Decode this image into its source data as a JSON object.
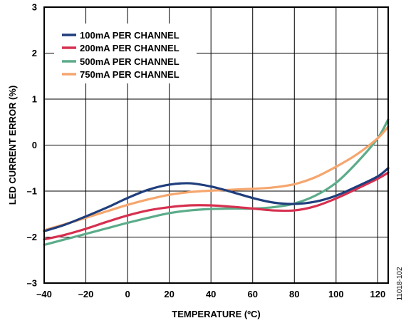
{
  "figure_id": "11018-102",
  "chart_data": {
    "type": "line",
    "xlabel": "TEMPERATURE (ºC)",
    "ylabel": "LED CURRENT ERROR (%)",
    "xlim": [
      -40,
      125
    ],
    "ylim": [
      -3,
      3
    ],
    "x_ticks": [
      -40,
      -20,
      0,
      20,
      40,
      60,
      80,
      100,
      120
    ],
    "x_tick_labels": [
      "–40",
      "–20",
      "0",
      "20",
      "40",
      "60",
      "80",
      "100",
      "120"
    ],
    "y_ticks": [
      -3,
      -2,
      -1,
      0,
      1,
      2,
      3
    ],
    "y_tick_labels": [
      "–3",
      "–2",
      "–1",
      "0",
      "1",
      "2",
      "3"
    ],
    "grid": true,
    "legend_position": "top-left",
    "series": [
      {
        "name": "100mA PER CHANNEL",
        "color": "#1f3e7c",
        "points": [
          [
            -40,
            -1.87
          ],
          [
            -30,
            -1.73
          ],
          [
            -20,
            -1.55
          ],
          [
            -10,
            -1.36
          ],
          [
            0,
            -1.15
          ],
          [
            10,
            -0.97
          ],
          [
            20,
            -0.86
          ],
          [
            30,
            -0.83
          ],
          [
            40,
            -0.9
          ],
          [
            50,
            -1.02
          ],
          [
            60,
            -1.15
          ],
          [
            70,
            -1.25
          ],
          [
            80,
            -1.28
          ],
          [
            90,
            -1.23
          ],
          [
            100,
            -1.1
          ],
          [
            110,
            -0.9
          ],
          [
            120,
            -0.68
          ],
          [
            125,
            -0.5
          ]
        ]
      },
      {
        "name": "200mA PER CHANNEL",
        "color": "#d6304f",
        "points": [
          [
            -40,
            -2.05
          ],
          [
            -30,
            -1.95
          ],
          [
            -20,
            -1.82
          ],
          [
            -10,
            -1.67
          ],
          [
            0,
            -1.53
          ],
          [
            10,
            -1.42
          ],
          [
            20,
            -1.35
          ],
          [
            30,
            -1.31
          ],
          [
            40,
            -1.31
          ],
          [
            50,
            -1.34
          ],
          [
            60,
            -1.38
          ],
          [
            70,
            -1.42
          ],
          [
            80,
            -1.42
          ],
          [
            90,
            -1.33
          ],
          [
            100,
            -1.16
          ],
          [
            110,
            -0.95
          ],
          [
            120,
            -0.73
          ],
          [
            125,
            -0.6
          ]
        ]
      },
      {
        "name": "500mA PER CHANNEL",
        "color": "#5cac8a",
        "points": [
          [
            -40,
            -2.17
          ],
          [
            -30,
            -2.05
          ],
          [
            -20,
            -1.93
          ],
          [
            -10,
            -1.81
          ],
          [
            0,
            -1.69
          ],
          [
            10,
            -1.58
          ],
          [
            20,
            -1.48
          ],
          [
            30,
            -1.42
          ],
          [
            40,
            -1.39
          ],
          [
            50,
            -1.38
          ],
          [
            60,
            -1.38
          ],
          [
            70,
            -1.35
          ],
          [
            80,
            -1.27
          ],
          [
            90,
            -1.1
          ],
          [
            100,
            -0.82
          ],
          [
            110,
            -0.38
          ],
          [
            120,
            0.15
          ],
          [
            125,
            0.56
          ]
        ]
      },
      {
        "name": "750mA PER CHANNEL",
        "color": "#f5a66e",
        "points": [
          [
            -40,
            -1.85
          ],
          [
            -30,
            -1.72
          ],
          [
            -20,
            -1.58
          ],
          [
            -10,
            -1.44
          ],
          [
            0,
            -1.3
          ],
          [
            10,
            -1.18
          ],
          [
            20,
            -1.08
          ],
          [
            30,
            -1.02
          ],
          [
            40,
            -0.99
          ],
          [
            50,
            -0.97
          ],
          [
            60,
            -0.95
          ],
          [
            70,
            -0.92
          ],
          [
            80,
            -0.85
          ],
          [
            90,
            -0.7
          ],
          [
            100,
            -0.47
          ],
          [
            110,
            -0.2
          ],
          [
            120,
            0.15
          ],
          [
            125,
            0.4
          ]
        ]
      }
    ]
  }
}
